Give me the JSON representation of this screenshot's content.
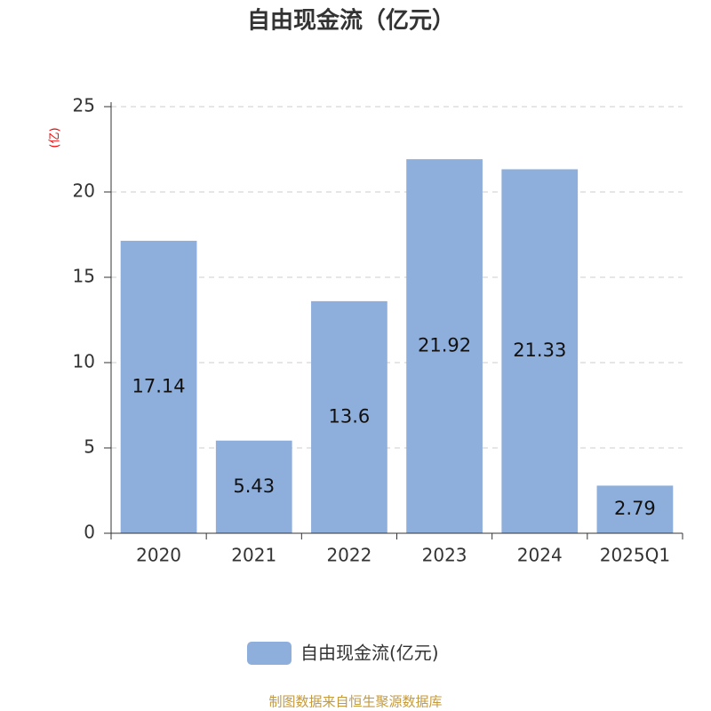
{
  "chart_data": {
    "type": "bar",
    "title": "自由现金流（亿元）",
    "y_unit": "(亿)",
    "categories": [
      "2020",
      "2021",
      "2022",
      "2023",
      "2024",
      "2025Q1"
    ],
    "series": [
      {
        "name": "自由现金流(亿元)",
        "color": "#8eaedb",
        "values": [
          17.14,
          5.43,
          13.6,
          21.92,
          21.33,
          2.79
        ]
      }
    ],
    "ylim": [
      0,
      25
    ],
    "yticks": [
      0,
      5,
      10,
      15,
      20,
      25
    ],
    "grid": true,
    "source": "制图数据来自恒生聚源数据库"
  }
}
